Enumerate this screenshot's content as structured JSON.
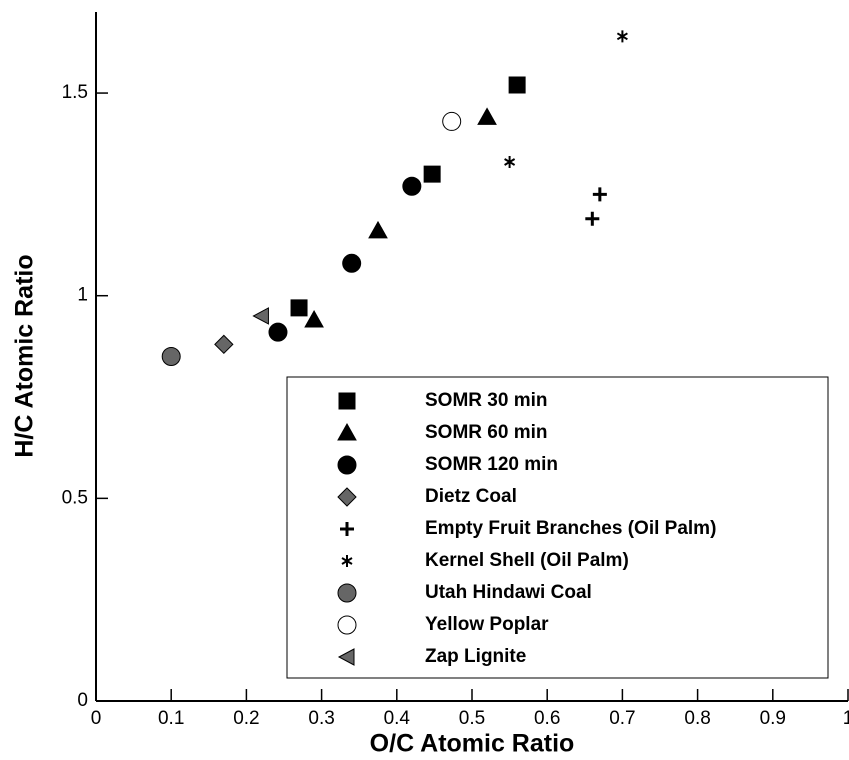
{
  "chart_data": {
    "type": "scatter",
    "x_label": "O/C Atomic Ratio",
    "y_label": "H/C Atomic Ratio",
    "xlim": [
      0,
      1
    ],
    "ylim": [
      0,
      1.7
    ],
    "xticks": [
      0,
      0.1,
      0.2,
      0.3,
      0.4,
      0.5,
      0.6,
      0.7,
      0.8,
      0.9,
      1
    ],
    "yticks": [
      0,
      0.5,
      1,
      1.5
    ],
    "legend": "lower right",
    "series": [
      {
        "name": "SOMR 30 min",
        "marker": "square",
        "color": "#000000",
        "x": [
          0.27,
          0.447,
          0.56
        ],
        "values": [
          0.97,
          1.3,
          1.52
        ]
      },
      {
        "name": "SOMR 60 min",
        "marker": "triangle",
        "color": "#000000",
        "x": [
          0.29,
          0.375,
          0.52
        ],
        "values": [
          0.94,
          1.16,
          1.44
        ]
      },
      {
        "name": "SOMR 120 min",
        "marker": "circle",
        "color": "#000000",
        "x": [
          0.242,
          0.34,
          0.42
        ],
        "values": [
          0.91,
          1.08,
          1.27
        ]
      },
      {
        "name": "Dietz Coal",
        "marker": "diamond",
        "color": "#666666",
        "x": [
          0.17
        ],
        "values": [
          0.88
        ]
      },
      {
        "name": "Empty Fruit Branches (Oil Palm)",
        "marker": "plus",
        "color": "#000000",
        "x": [
          0.66,
          0.67
        ],
        "values": [
          1.19,
          1.25
        ]
      },
      {
        "name": "Kernel Shell (Oil Palm)",
        "marker": "star",
        "color": "#000000",
        "x": [
          0.55,
          0.7
        ],
        "values": [
          1.33,
          1.64
        ]
      },
      {
        "name": "Utah Hindawi Coal",
        "marker": "circle",
        "color": "#666666",
        "x": [
          0.1
        ],
        "values": [
          0.85
        ]
      },
      {
        "name": "Yellow Poplar",
        "marker": "circle",
        "color": "#ffffff",
        "x": [
          0.473
        ],
        "values": [
          1.43
        ]
      },
      {
        "name": "Zap Lignite",
        "marker": "triangle-left",
        "color": "#666666",
        "x": [
          0.22
        ],
        "values": [
          0.95
        ]
      }
    ]
  }
}
